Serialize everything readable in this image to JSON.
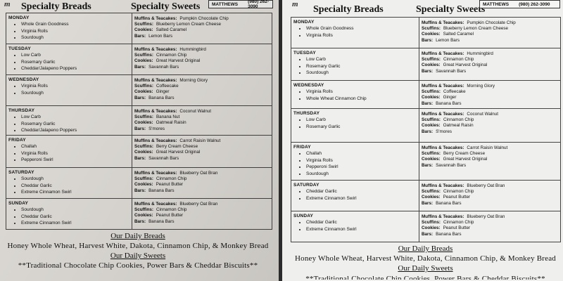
{
  "header": {
    "logo_text": "m",
    "specialty_breads_title": "Specialty Breads",
    "specialty_sweets_title": "Specialty Sweets",
    "contact_name": "MATTHEWS",
    "contact_phone": "(980) 262-3090"
  },
  "labels": {
    "muffins": "Muffins & Teacakes:",
    "scuffins": "Scuffins:",
    "cookies": "Cookies:",
    "bars": "Bars:"
  },
  "left_photo": {
    "days": [
      {
        "day": "MONDAY",
        "breads": [
          "Whole Grain Goodness",
          "Virginia Rolls",
          "Sourdough"
        ],
        "muffins": "Pumpkin Chocolate Chip",
        "scuffins": "Blueberry Lemon Cream Cheese",
        "cookies": "Salted Caramel",
        "bars": "Lemon Bars"
      },
      {
        "day": "TUESDAY",
        "breads": [
          "Low Carb",
          "Rosemary Garlic",
          "Cheddar/Jalapeno Poppers"
        ],
        "muffins": "Hummingbird",
        "scuffins": "Cinnamon Chip",
        "cookies": "Great Harvest Original",
        "bars": "Savannah Bars"
      },
      {
        "day": "WEDNESDAY",
        "breads": [
          "Virginia Rolls",
          "Sourdough"
        ],
        "muffins": "Morning Glory",
        "scuffins": "Coffeecake",
        "cookies": "Ginger",
        "bars": "Banana Bars"
      },
      {
        "day": "THURSDAY",
        "breads": [
          "Low Carb",
          "Rosemary Garlic",
          "Cheddar/Jalapeno Poppers"
        ],
        "muffins": "Coconut Walnut",
        "scuffins": "Banana Nut",
        "cookies": "Oatmeal Raisin",
        "bars": "S'mores"
      },
      {
        "day": "FRIDAY",
        "breads": [
          "Challah",
          "Virginia Rolls",
          "Pepperoni Swirl"
        ],
        "muffins": "Carrot Raisin Walnut",
        "scuffins": "Berry Cream Cheese",
        "cookies": "Great Harvest Original",
        "bars": "Savannah Bars"
      },
      {
        "day": "SATURDAY",
        "breads": [
          "Sourdough",
          "Cheddar Garlic",
          "Extreme Cinnamon Swirl"
        ],
        "muffins": "Blueberry Oat Bran",
        "scuffins": "Cinnamon Chip",
        "cookies": "Peanut Butter",
        "bars": "Banana Bars"
      },
      {
        "day": "SUNDAY",
        "breads": [
          "Sourdough",
          "Cheddar Garlic",
          "Extreme Cinnamon Swirl"
        ],
        "muffins": "Blueberry Oat Bran",
        "scuffins": "Cinnamon Chip",
        "cookies": "Peanut Butter",
        "bars": "Banana Bars"
      }
    ]
  },
  "right_photo": {
    "days": [
      {
        "day": "MONDAY",
        "breads": [
          "Whole Grain Goodness",
          "Virginia Rolls"
        ],
        "muffins": "Pumpkin Chocolate Chip",
        "scuffins": "Blueberry Lemon Cream Cheese",
        "cookies": "Salted Caramel",
        "bars": "Lemon Bars"
      },
      {
        "day": "TUESDAY",
        "breads": [
          "Low Carb",
          "Rosemary Garlic",
          "Sourdough"
        ],
        "muffins": "Hummingbird",
        "scuffins": "Cinnamon Chip",
        "cookies": "Great Harvest Original",
        "bars": "Savannah Bars"
      },
      {
        "day": "WEDNESDAY",
        "breads": [
          "Virginia Rolls",
          "Whole Wheat Cinnamon Chip"
        ],
        "muffins": "Morning Glory",
        "scuffins": "Coffeecake",
        "cookies": "Ginger",
        "bars": "Banana Bars"
      },
      {
        "day": "THURSDAY",
        "breads": [
          "Low Carb",
          "Rosemary Garlic"
        ],
        "muffins": "Coconut Walnut",
        "scuffins": "Cinnamon Chip",
        "cookies": "Oatmeal Raisin",
        "bars": "S'mores"
      },
      {
        "day": "FRIDAY",
        "breads": [
          "Challah",
          "Virginia Rolls",
          "Pepperoni Swirl",
          "Sourdough"
        ],
        "muffins": "Carrot Raisin Walnut",
        "scuffins": "Berry Cream Cheese",
        "cookies": "Great Harvest Original",
        "bars": "Savannah Bars"
      },
      {
        "day": "SATURDAY",
        "breads": [
          "Cheddar Garlic",
          "Extreme Cinnamon Swirl"
        ],
        "muffins": "Blueberry Oat Bran",
        "scuffins": "Cinnamon Chip",
        "cookies": "Peanut Butter",
        "bars": "Banana Bars"
      },
      {
        "day": "SUNDAY",
        "breads": [
          "Cheddar Garlic",
          "Extreme Cinnamon Swirl"
        ],
        "muffins": "Blueberry Oat Bran",
        "scuffins": "Cinnamon Chip",
        "cookies": "Peanut Butter",
        "bars": "Banana Bars"
      }
    ]
  },
  "footer": {
    "daily_breads_title": "Our Daily Breads",
    "daily_breads": "Honey Whole Wheat, Harvest White, Dakota, Cinnamon Chip, & Monkey Bread",
    "daily_sweets_title": "Our Daily Sweets",
    "daily_sweets": "**Traditional Chocolate Chip Cookies, Power Bars & Cheddar Biscuits**"
  }
}
